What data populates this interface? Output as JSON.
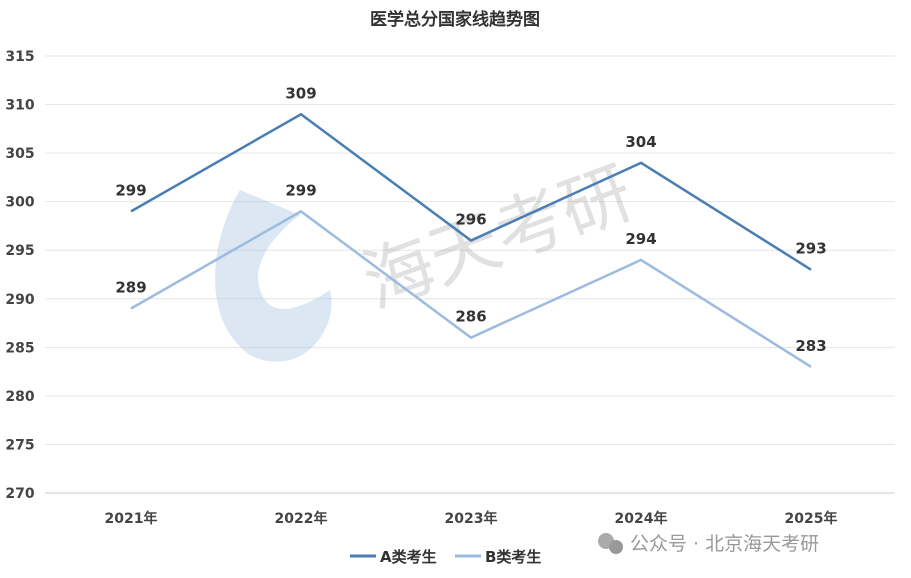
{
  "chart_data": {
    "type": "line",
    "title": "医学总分国家线趋势图",
    "categories": [
      "2021年",
      "2022年",
      "2023年",
      "2024年",
      "2025年"
    ],
    "series": [
      {
        "name": "A类考生",
        "values": [
          299,
          309,
          296,
          304,
          293
        ],
        "color": "#4a7eb5"
      },
      {
        "name": "B类考生",
        "values": [
          289,
          299,
          286,
          294,
          283
        ],
        "color": "#9dbbe0"
      }
    ],
    "ylim": [
      270,
      315
    ],
    "yticks": [
      270,
      275,
      280,
      285,
      290,
      295,
      300,
      305,
      310,
      315
    ],
    "grid": true,
    "data_labels": true,
    "legend": "bottom"
  },
  "watermark": {
    "center": "海天考研",
    "footer": "公众号 · 北京海天考研"
  }
}
